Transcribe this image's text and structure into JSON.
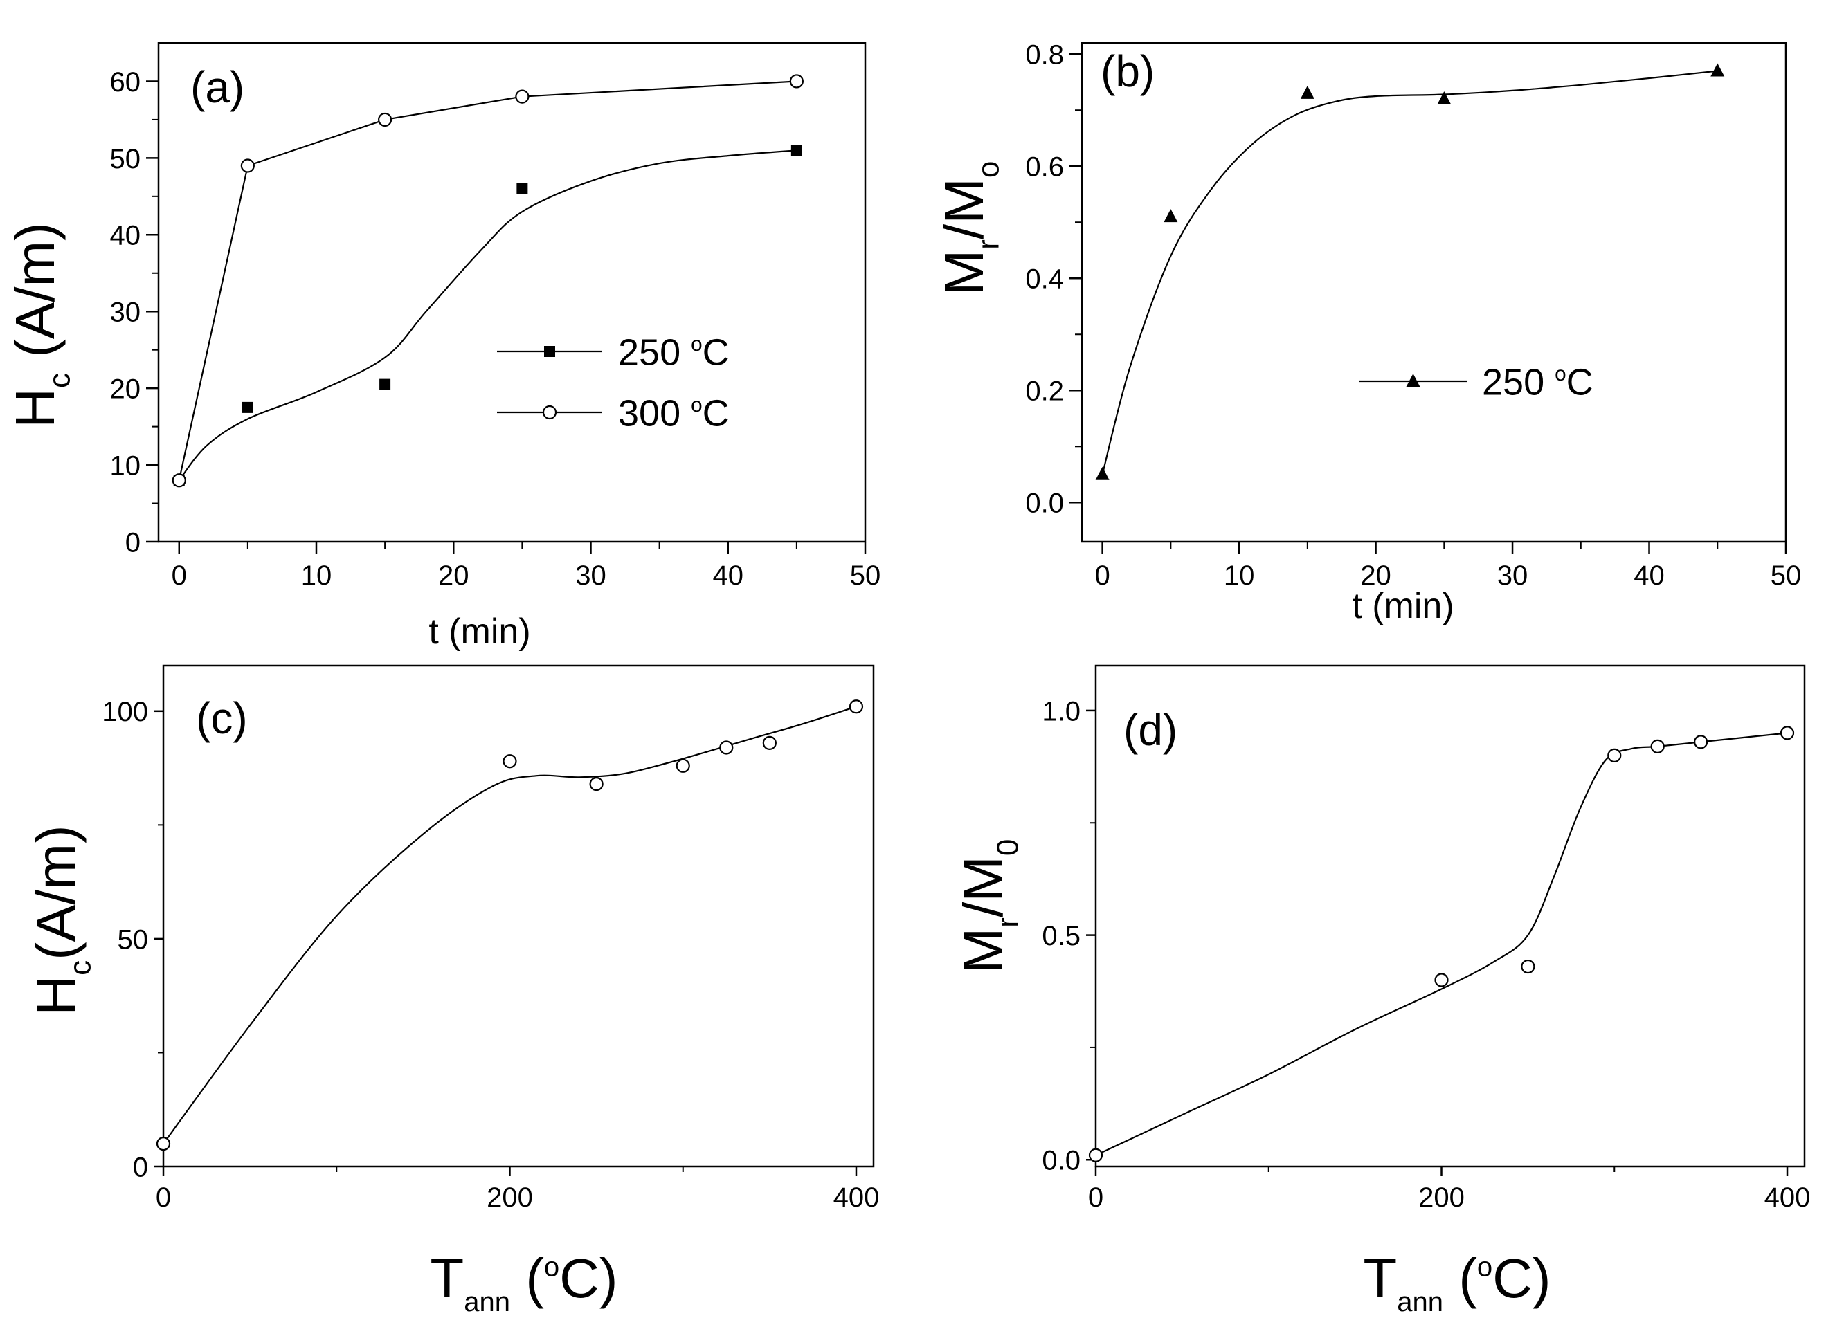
{
  "chart_data": [
    {
      "id": "a",
      "type": "scatter",
      "panel_label": "(a)",
      "xlabel": "t (min)",
      "ylabel": "H",
      "ylabel_sub": "c",
      "ylabel_rest": " (A/m)",
      "xlim": [
        -1.5,
        50
      ],
      "ylim": [
        0,
        65
      ],
      "xticks": [
        0,
        10,
        20,
        30,
        40,
        50
      ],
      "yticks": [
        0,
        10,
        20,
        30,
        40,
        50,
        60
      ],
      "series": [
        {
          "name": "250 °C",
          "legend_text": "250",
          "legend_unit": "C",
          "marker": "square-filled",
          "x": [
            0,
            5,
            15,
            25,
            45
          ],
          "y": [
            8,
            17.5,
            20.5,
            46,
            51
          ],
          "curve_x": [
            0,
            2,
            5,
            10,
            15,
            18,
            22,
            25,
            30,
            35,
            40,
            45
          ],
          "curve_y": [
            8,
            12.5,
            16,
            19.5,
            24,
            30,
            38,
            43,
            47,
            49.3,
            50.3,
            51
          ],
          "curve_type": "smooth"
        },
        {
          "name": "300 °C",
          "legend_text": "300",
          "legend_unit": "C",
          "marker": "circle-open",
          "x": [
            0,
            5,
            15,
            25,
            45
          ],
          "y": [
            8,
            49,
            55,
            58,
            60
          ],
          "curve_type": "linear"
        }
      ]
    },
    {
      "id": "b",
      "type": "scatter",
      "panel_label": "(b)",
      "xlabel": "t (min)",
      "ylabel": "M",
      "ylabel_sub": "r",
      "ylabel_mid": "/M",
      "ylabel_sub2": "o",
      "xlim": [
        -1.5,
        50
      ],
      "ylim": [
        -0.07,
        0.82
      ],
      "xticks": [
        0,
        10,
        20,
        30,
        40,
        50
      ],
      "yticks": [
        0.0,
        0.2,
        0.4,
        0.6,
        0.8
      ],
      "ytick_labels": [
        "0.0",
        "0.2",
        "0.4",
        "0.6",
        "0.8"
      ],
      "series": [
        {
          "name": "250 °C",
          "legend_text": "250",
          "legend_unit": "C",
          "marker": "triangle-filled",
          "x": [
            0,
            5,
            15,
            25,
            45
          ],
          "y": [
            0.05,
            0.51,
            0.73,
            0.72,
            0.77
          ],
          "curve_x": [
            0,
            2,
            5,
            8,
            11,
            14,
            17,
            20,
            25,
            30,
            35,
            40,
            45
          ],
          "curve_y": [
            0.05,
            0.24,
            0.44,
            0.56,
            0.64,
            0.69,
            0.715,
            0.725,
            0.728,
            0.735,
            0.745,
            0.757,
            0.77
          ],
          "curve_type": "smooth"
        }
      ]
    },
    {
      "id": "c",
      "type": "scatter",
      "panel_label": "(c)",
      "xlabel": "T",
      "xlabel_sub": "ann",
      "xlabel_unit": "C",
      "ylabel": "H",
      "ylabel_sub": "c",
      "ylabel_rest": "(A/m)",
      "xlim": [
        0,
        410
      ],
      "ylim": [
        0,
        110
      ],
      "xticks": [
        0,
        200,
        400
      ],
      "xticks_minor": [
        100,
        300
      ],
      "yticks": [
        0,
        50,
        100
      ],
      "yticks_minor": [
        25,
        75
      ],
      "series": [
        {
          "name": "Hc vs Tann",
          "marker": "circle-open",
          "x": [
            0,
            200,
            250,
            300,
            325,
            350,
            400
          ],
          "y": [
            5,
            89,
            84,
            88,
            92,
            93,
            101
          ],
          "curve_x": [
            0,
            50,
            100,
            150,
            190,
            215,
            240,
            265,
            290,
            315,
            340,
            370,
            400
          ],
          "curve_y": [
            5,
            31,
            55,
            73,
            83.5,
            85.8,
            85.5,
            86.2,
            88.5,
            91.2,
            94,
            97.3,
            101
          ],
          "curve_type": "smooth"
        }
      ]
    },
    {
      "id": "d",
      "type": "scatter",
      "panel_label": "(d)",
      "xlabel": "T",
      "xlabel_sub": "ann",
      "xlabel_unit": "C",
      "ylabel": "M",
      "ylabel_sub": "r",
      "ylabel_mid": "/M",
      "ylabel_sub2": "0",
      "xlim": [
        0,
        410
      ],
      "ylim": [
        -0.015,
        1.1
      ],
      "xticks": [
        0,
        200,
        400
      ],
      "xticks_minor": [
        100,
        300
      ],
      "yticks": [
        0.0,
        0.5,
        1.0
      ],
      "ytick_labels": [
        "0.0",
        "0.5",
        "1.0"
      ],
      "yticks_minor": [
        0.25,
        0.75
      ],
      "series": [
        {
          "name": "Mr/M0 vs Tann",
          "marker": "circle-open",
          "x": [
            0,
            200,
            250,
            300,
            325,
            350,
            400
          ],
          "y": [
            0.01,
            0.4,
            0.43,
            0.9,
            0.92,
            0.93,
            0.95
          ],
          "curve_x": [
            0,
            50,
            100,
            150,
            200,
            230,
            250,
            265,
            280,
            295,
            310,
            325,
            350,
            400
          ],
          "curve_y": [
            0.01,
            0.1,
            0.19,
            0.29,
            0.38,
            0.44,
            0.5,
            0.63,
            0.78,
            0.89,
            0.915,
            0.92,
            0.93,
            0.95
          ],
          "curve_type": "smooth"
        }
      ]
    }
  ]
}
